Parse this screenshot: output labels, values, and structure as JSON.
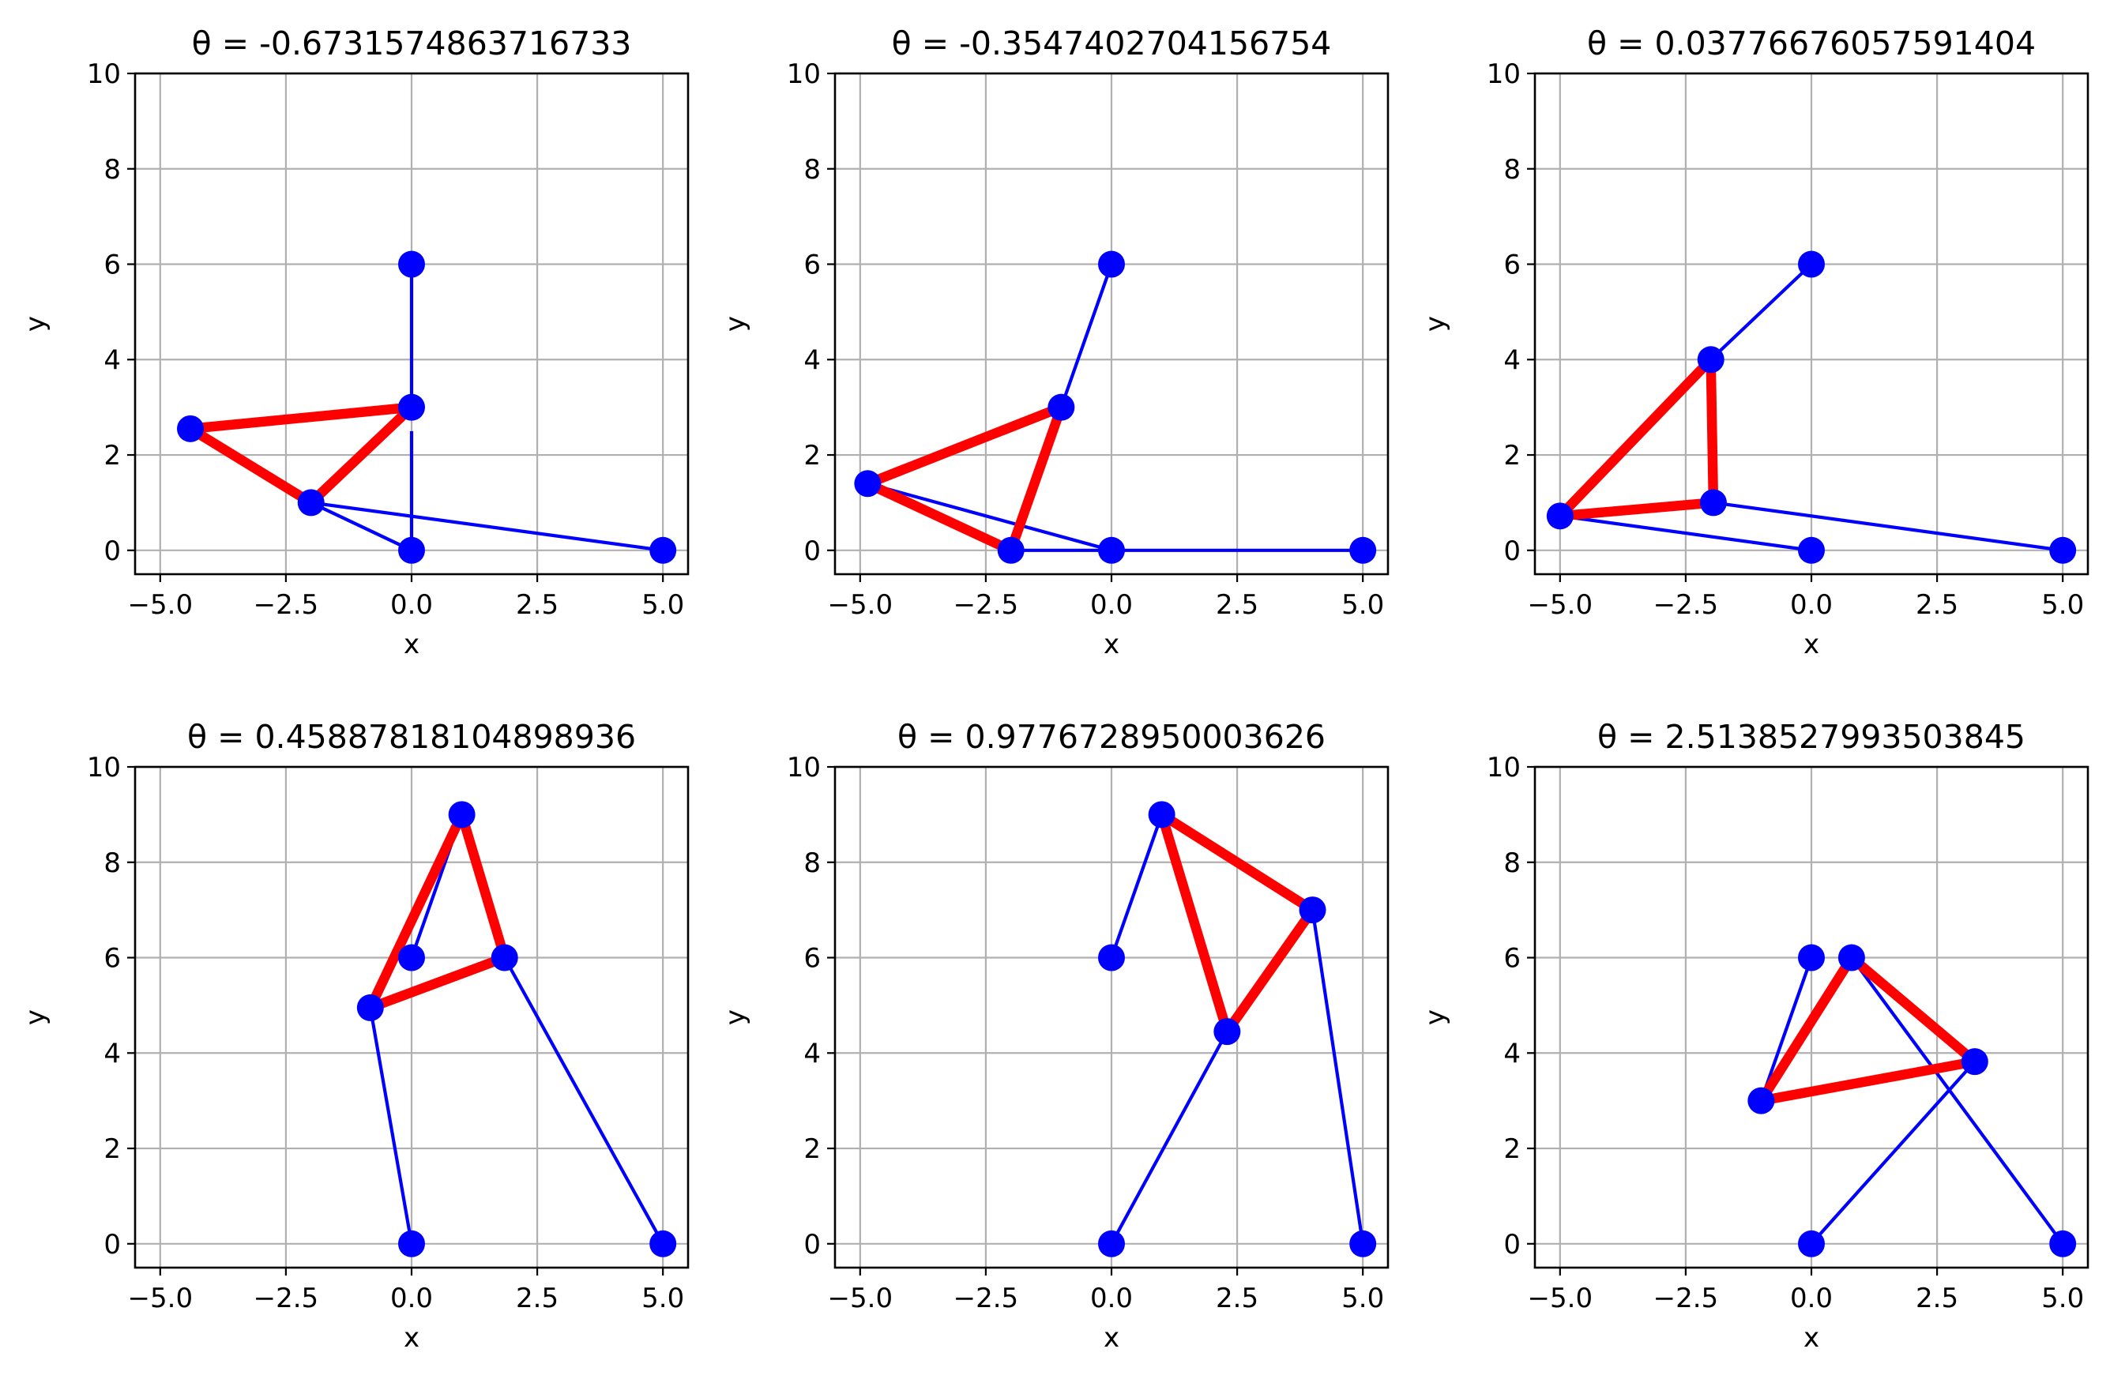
{
  "chart_data": [
    {
      "type": "line",
      "title": "θ = -0.6731574863716733",
      "xlabel": "x",
      "ylabel": "y",
      "xlim": [
        -5.5,
        5.5
      ],
      "ylim": [
        -0.5,
        10
      ],
      "xticks": [
        -5.0,
        -2.5,
        0.0,
        2.5,
        5.0
      ],
      "xtick_labels": [
        "−5.0",
        "−2.5",
        "0.0",
        "2.5",
        "5.0"
      ],
      "yticks": [
        0,
        2,
        4,
        6,
        8,
        10
      ],
      "ytick_labels": [
        "0",
        "2",
        "4",
        "6",
        "8",
        "10"
      ],
      "grid": true,
      "series": [
        {
          "color": "#0000ff",
          "x": [
            0,
            0
          ],
          "y": [
            0,
            2.5
          ]
        },
        {
          "color": "#0000ff",
          "x": [
            0,
            0
          ],
          "y": [
            3,
            6
          ]
        },
        {
          "color": "#0000ff",
          "x": [
            -4.4,
            -2.0,
            5
          ],
          "y": [
            2.55,
            1.0,
            0
          ]
        },
        {
          "color": "#0000ff",
          "x": [
            -2.0,
            0
          ],
          "y": [
            1.0,
            0
          ]
        },
        {
          "color": "#0000ff",
          "x": [
            -4.4,
            -2.0
          ],
          "y": [
            2.55,
            1.0
          ]
        },
        {
          "color": "#ff0000",
          "x": [
            -4.4,
            0,
            -2.0,
            -4.4
          ],
          "y": [
            2.55,
            3,
            1.0,
            2.55
          ]
        }
      ],
      "points": {
        "color": "#0000ff",
        "x": [
          0,
          0,
          -4.4,
          -2.0,
          0,
          5
        ],
        "y": [
          6,
          3,
          2.55,
          1.0,
          0,
          0
        ]
      }
    },
    {
      "type": "line",
      "title": "θ = -0.3547402704156754",
      "xlabel": "x",
      "ylabel": "y",
      "xlim": [
        -5.5,
        5.5
      ],
      "ylim": [
        -0.5,
        10
      ],
      "xticks": [
        -5.0,
        -2.5,
        0.0,
        2.5,
        5.0
      ],
      "xtick_labels": [
        "−5.0",
        "−2.5",
        "0.0",
        "2.5",
        "5.0"
      ],
      "yticks": [
        0,
        2,
        4,
        6,
        8,
        10
      ],
      "ytick_labels": [
        "0",
        "2",
        "4",
        "6",
        "8",
        "10"
      ],
      "grid": true,
      "series": [
        {
          "color": "#0000ff",
          "x": [
            0,
            -1.0
          ],
          "y": [
            6,
            3
          ]
        },
        {
          "color": "#0000ff",
          "x": [
            -4.85,
            0,
            5
          ],
          "y": [
            1.4,
            0,
            0
          ]
        },
        {
          "color": "#0000ff",
          "x": [
            -2.0,
            0
          ],
          "y": [
            0,
            0
          ]
        },
        {
          "color": "#ff0000",
          "x": [
            -4.85,
            -1.0,
            -2.0,
            -4.85
          ],
          "y": [
            1.4,
            3,
            0,
            1.4
          ]
        }
      ],
      "points": {
        "color": "#0000ff",
        "x": [
          0,
          -1.0,
          -4.85,
          -2.0,
          0,
          5
        ],
        "y": [
          6,
          3,
          1.4,
          0,
          0,
          0
        ]
      }
    },
    {
      "type": "line",
      "title": "θ = 0.03776676057591404",
      "xlabel": "x",
      "ylabel": "y",
      "xlim": [
        -5.5,
        5.5
      ],
      "ylim": [
        -0.5,
        10
      ],
      "xticks": [
        -5.0,
        -2.5,
        0.0,
        2.5,
        5.0
      ],
      "xtick_labels": [
        "−5.0",
        "−2.5",
        "0.0",
        "2.5",
        "5.0"
      ],
      "yticks": [
        0,
        2,
        4,
        6,
        8,
        10
      ],
      "ytick_labels": [
        "0",
        "2",
        "4",
        "6",
        "8",
        "10"
      ],
      "grid": true,
      "series": [
        {
          "color": "#0000ff",
          "x": [
            0,
            -2.0
          ],
          "y": [
            6,
            4
          ]
        },
        {
          "color": "#0000ff",
          "x": [
            -5.0,
            0
          ],
          "y": [
            0.72,
            0
          ]
        },
        {
          "color": "#0000ff",
          "x": [
            -1.95,
            5
          ],
          "y": [
            1.0,
            0
          ]
        },
        {
          "color": "#ff0000",
          "x": [
            -5.0,
            -2.0,
            -1.95,
            -5.0
          ],
          "y": [
            0.72,
            4,
            1.0,
            0.72
          ]
        }
      ],
      "points": {
        "color": "#0000ff",
        "x": [
          0,
          -2.0,
          -1.95,
          -5.0,
          0,
          5
        ],
        "y": [
          6,
          4,
          1.0,
          0.72,
          0,
          0
        ]
      }
    },
    {
      "type": "line",
      "title": "θ = 0.45887818104898936",
      "xlabel": "x",
      "ylabel": "y",
      "xlim": [
        -5.5,
        5.5
      ],
      "ylim": [
        -0.5,
        10
      ],
      "xticks": [
        -5.0,
        -2.5,
        0.0,
        2.5,
        5.0
      ],
      "xtick_labels": [
        "−5.0",
        "−2.5",
        "0.0",
        "2.5",
        "5.0"
      ],
      "yticks": [
        0,
        2,
        4,
        6,
        8,
        10
      ],
      "ytick_labels": [
        "0",
        "2",
        "4",
        "6",
        "8",
        "10"
      ],
      "grid": true,
      "series": [
        {
          "color": "#0000ff",
          "x": [
            0,
            1.0
          ],
          "y": [
            6,
            9
          ]
        },
        {
          "color": "#0000ff",
          "x": [
            -0.82,
            0
          ],
          "y": [
            4.95,
            0
          ]
        },
        {
          "color": "#0000ff",
          "x": [
            1.85,
            5
          ],
          "y": [
            6,
            0
          ]
        },
        {
          "color": "#ff0000",
          "x": [
            -0.82,
            1.0,
            1.85,
            -0.82
          ],
          "y": [
            4.95,
            9,
            6,
            4.95
          ]
        }
      ],
      "points": {
        "color": "#0000ff",
        "x": [
          1.0,
          0,
          1.85,
          -0.82,
          0,
          5
        ],
        "y": [
          9,
          6,
          6,
          4.95,
          0,
          0
        ]
      }
    },
    {
      "type": "line",
      "title": "θ = 0.9776728950003626",
      "xlabel": "x",
      "ylabel": "y",
      "xlim": [
        -5.5,
        5.5
      ],
      "ylim": [
        -0.5,
        10
      ],
      "xticks": [
        -5.0,
        -2.5,
        0.0,
        2.5,
        5.0
      ],
      "xtick_labels": [
        "−5.0",
        "−2.5",
        "0.0",
        "2.5",
        "5.0"
      ],
      "yticks": [
        0,
        2,
        4,
        6,
        8,
        10
      ],
      "ytick_labels": [
        "0",
        "2",
        "4",
        "6",
        "8",
        "10"
      ],
      "grid": true,
      "series": [
        {
          "color": "#0000ff",
          "x": [
            0,
            1.0
          ],
          "y": [
            6,
            9
          ]
        },
        {
          "color": "#0000ff",
          "x": [
            2.3,
            0
          ],
          "y": [
            4.45,
            0
          ]
        },
        {
          "color": "#0000ff",
          "x": [
            4.0,
            5
          ],
          "y": [
            7,
            0
          ]
        },
        {
          "color": "#ff0000",
          "x": [
            1.0,
            4.0,
            2.3,
            1.0
          ],
          "y": [
            9,
            7,
            4.45,
            9
          ]
        }
      ],
      "points": {
        "color": "#0000ff",
        "x": [
          1.0,
          4.0,
          0,
          2.3,
          0,
          5
        ],
        "y": [
          9,
          7,
          6,
          4.45,
          0,
          0
        ]
      }
    },
    {
      "type": "line",
      "title": "θ = 2.5138527993503845",
      "xlabel": "x",
      "ylabel": "y",
      "xlim": [
        -5.5,
        5.5
      ],
      "ylim": [
        -0.5,
        10
      ],
      "xticks": [
        -5.0,
        -2.5,
        0.0,
        2.5,
        5.0
      ],
      "xtick_labels": [
        "−5.0",
        "−2.5",
        "0.0",
        "2.5",
        "5.0"
      ],
      "yticks": [
        0,
        2,
        4,
        6,
        8,
        10
      ],
      "ytick_labels": [
        "0",
        "2",
        "4",
        "6",
        "8",
        "10"
      ],
      "grid": true,
      "series": [
        {
          "color": "#0000ff",
          "x": [
            0,
            -1.0
          ],
          "y": [
            6,
            3
          ]
        },
        {
          "color": "#0000ff",
          "x": [
            0.8,
            5
          ],
          "y": [
            6,
            0
          ]
        },
        {
          "color": "#0000ff",
          "x": [
            3.25,
            0
          ],
          "y": [
            3.82,
            0
          ]
        },
        {
          "color": "#ff0000",
          "x": [
            -1.0,
            0.8,
            3.25,
            -1.0
          ],
          "y": [
            3,
            6,
            3.82,
            3
          ]
        }
      ],
      "points": {
        "color": "#0000ff",
        "x": [
          0,
          0.8,
          3.25,
          -1.0,
          0,
          5
        ],
        "y": [
          6,
          6,
          3.82,
          3,
          0,
          0
        ]
      }
    }
  ]
}
